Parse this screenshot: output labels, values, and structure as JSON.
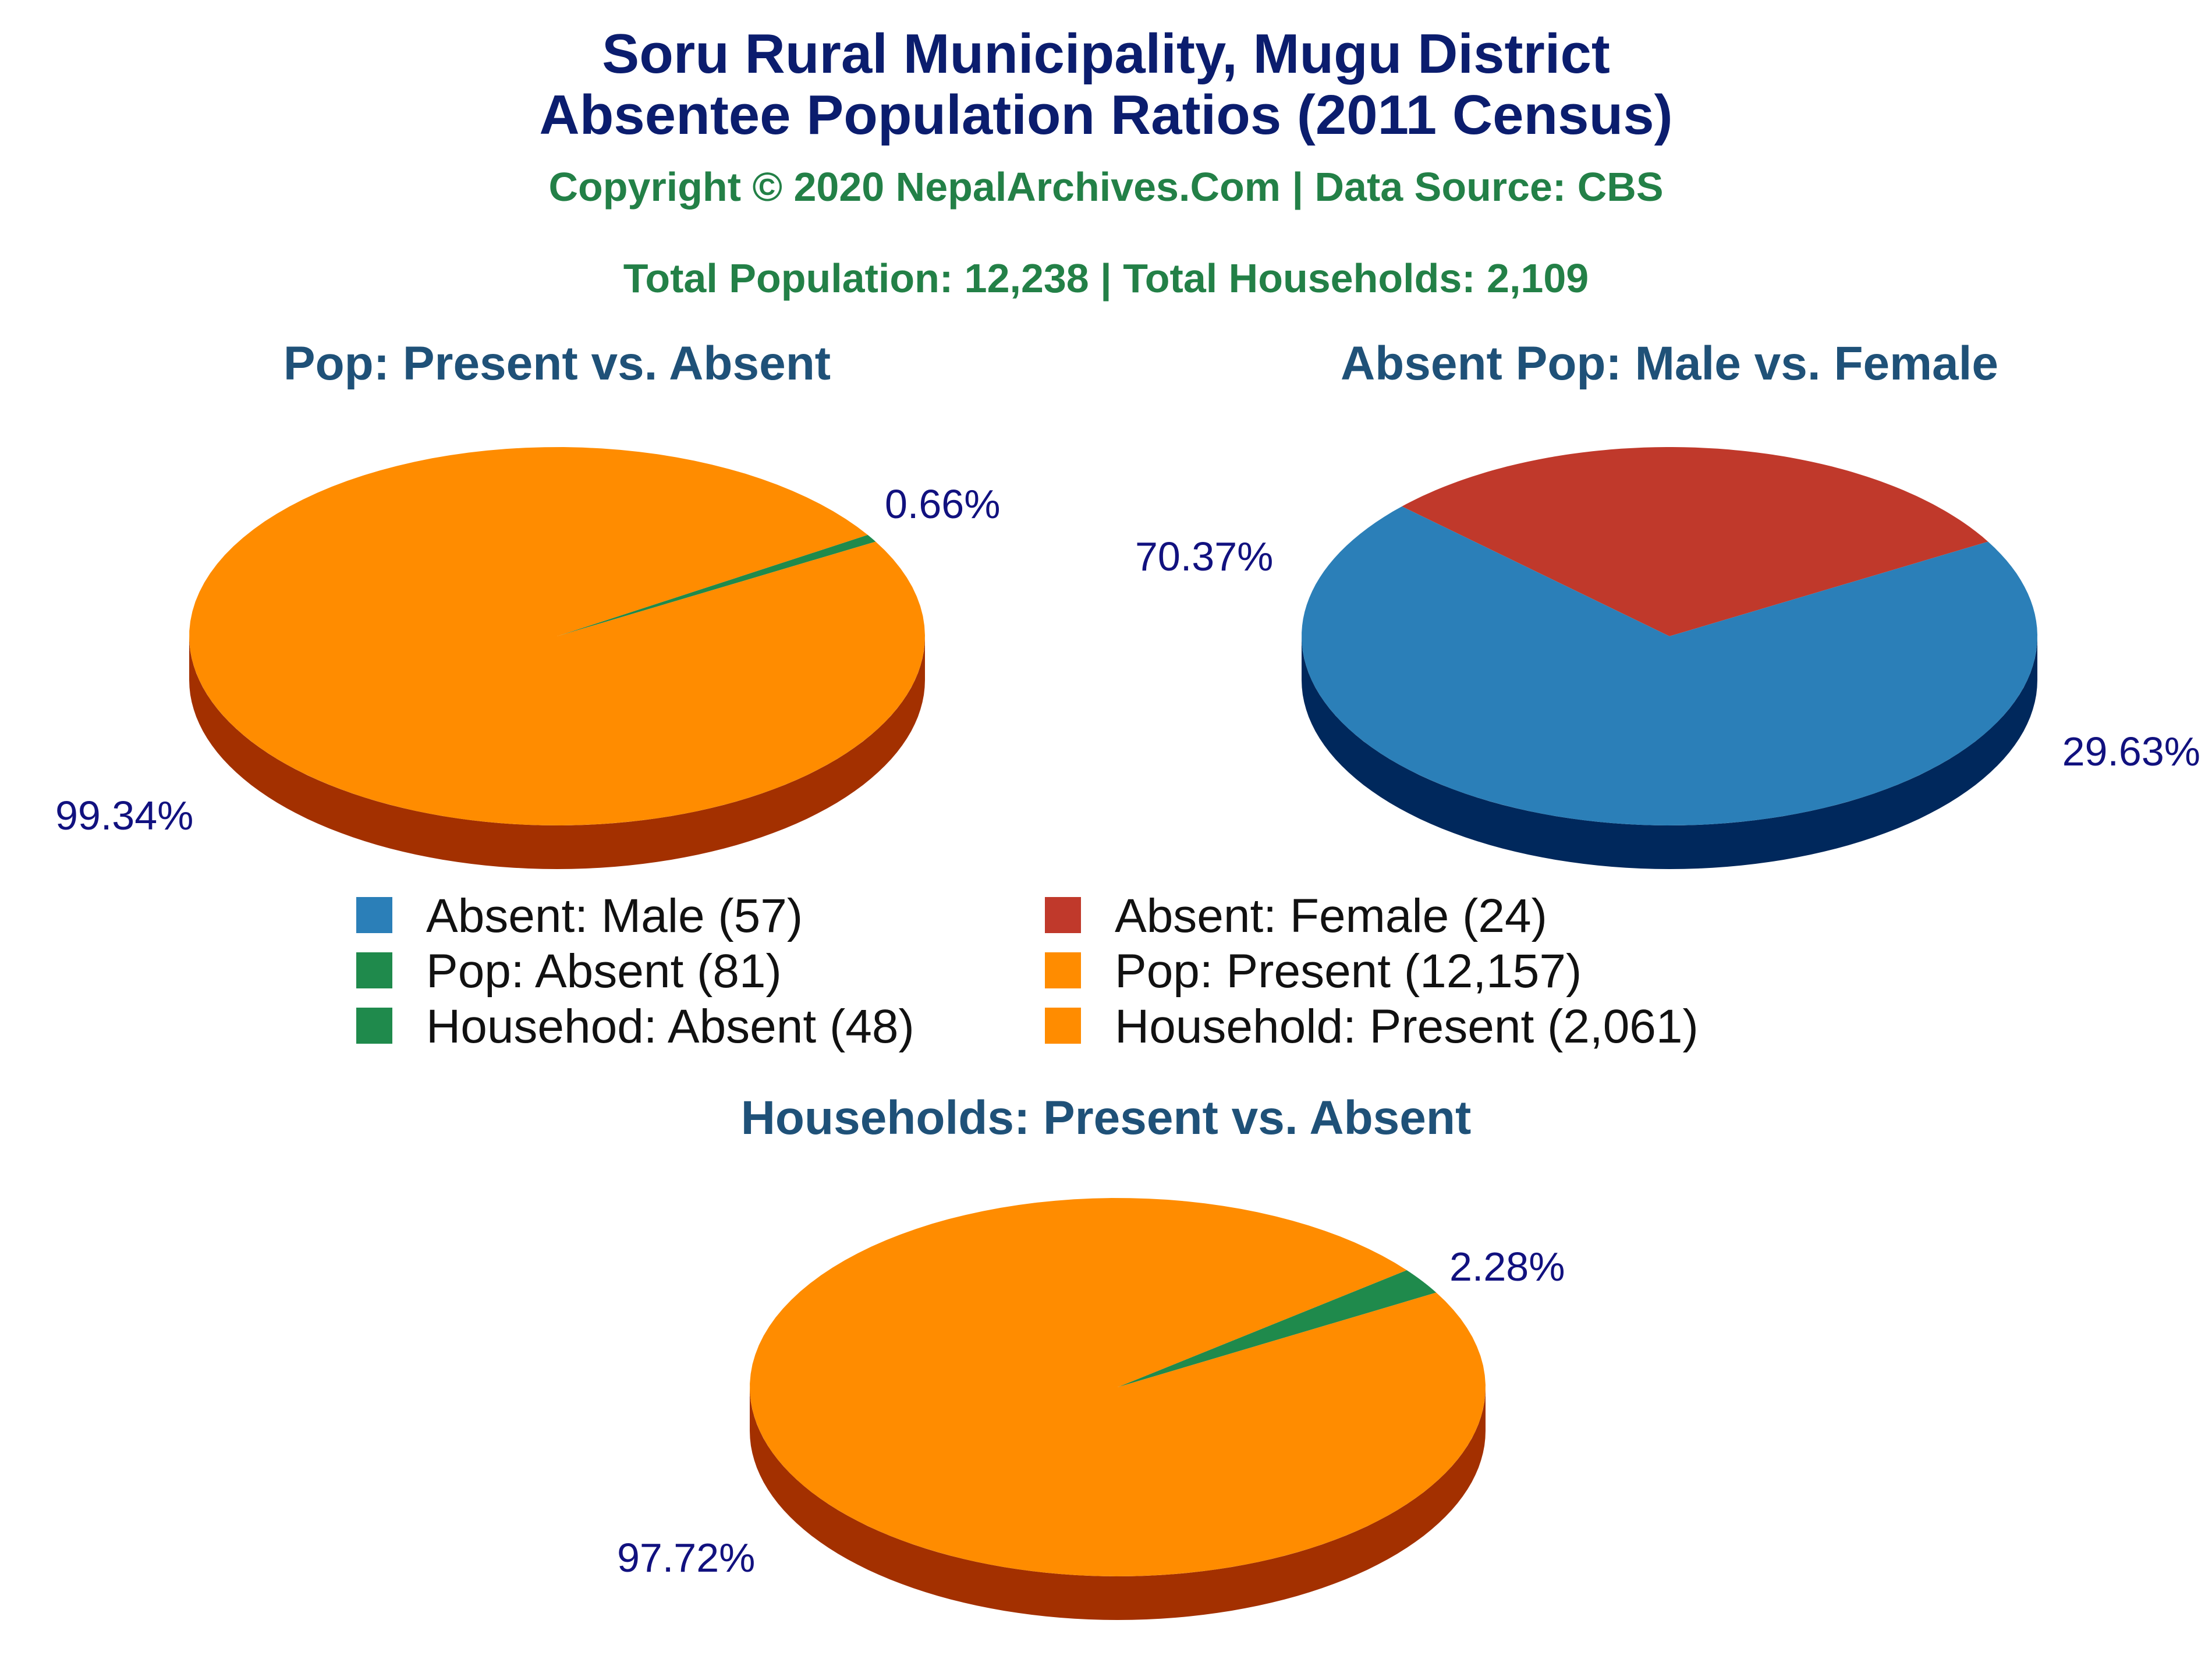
{
  "header": {
    "title_line1": "Soru Rural Municipality, Mugu District",
    "title_line2": "Absentee Population Ratios (2011 Census)",
    "copyright": "Copyright © 2020 NepalArchives.Com | Data Source: CBS",
    "totals": "Total Population: 12,238 | Total Households: 2,109"
  },
  "colors": {
    "title": "#0b1d6e",
    "subtitle": "#238047",
    "chart_title": "#1f5178",
    "pct_label": "#11117f",
    "orange": "#ff8c00",
    "orange_side": "#a33000",
    "green": "#1f8a4c",
    "green_side": "#0d4a26",
    "blue": "#2b7fb8",
    "blue_side": "#00285c",
    "red": "#c0392b",
    "red_side": "#6b0000"
  },
  "legend": [
    {
      "label": "Absent: Male (57)",
      "color": "#2b7fb8"
    },
    {
      "label": "Absent: Female (24)",
      "color": "#c0392b"
    },
    {
      "label": "Pop: Absent (81)",
      "color": "#1f8a4c"
    },
    {
      "label": "Pop: Present (12,157)",
      "color": "#ff8c00"
    },
    {
      "label": "Househod: Absent (48)",
      "color": "#1f8a4c"
    },
    {
      "label": "Household: Present (2,061)",
      "color": "#ff8c00"
    }
  ],
  "chart_data": [
    {
      "type": "pie",
      "title": "Pop: Present vs. Absent",
      "slices": [
        {
          "name": "Pop: Absent",
          "value": 81,
          "percent_label": "0.66%",
          "color": "#1f8a4c",
          "side_color": "#0d4a26"
        },
        {
          "name": "Pop: Present",
          "value": 12157,
          "percent_label": "99.34%",
          "color": "#ff8c00",
          "side_color": "#a33000"
        }
      ]
    },
    {
      "type": "pie",
      "title": "Absent Pop: Male vs. Female",
      "slices": [
        {
          "name": "Absent: Female",
          "value": 24,
          "percent_label": "29.63%",
          "color": "#c0392b",
          "side_color": "#6b0000"
        },
        {
          "name": "Absent: Male",
          "value": 57,
          "percent_label": "70.37%",
          "color": "#2b7fb8",
          "side_color": "#00285c"
        }
      ]
    },
    {
      "type": "pie",
      "title": "Households: Present vs. Absent",
      "slices": [
        {
          "name": "Househod: Absent",
          "value": 48,
          "percent_label": "2.28%",
          "color": "#1f8a4c",
          "side_color": "#0d4a26"
        },
        {
          "name": "Household: Present",
          "value": 2061,
          "percent_label": "97.72%",
          "color": "#ff8c00",
          "side_color": "#a33000"
        }
      ]
    }
  ]
}
